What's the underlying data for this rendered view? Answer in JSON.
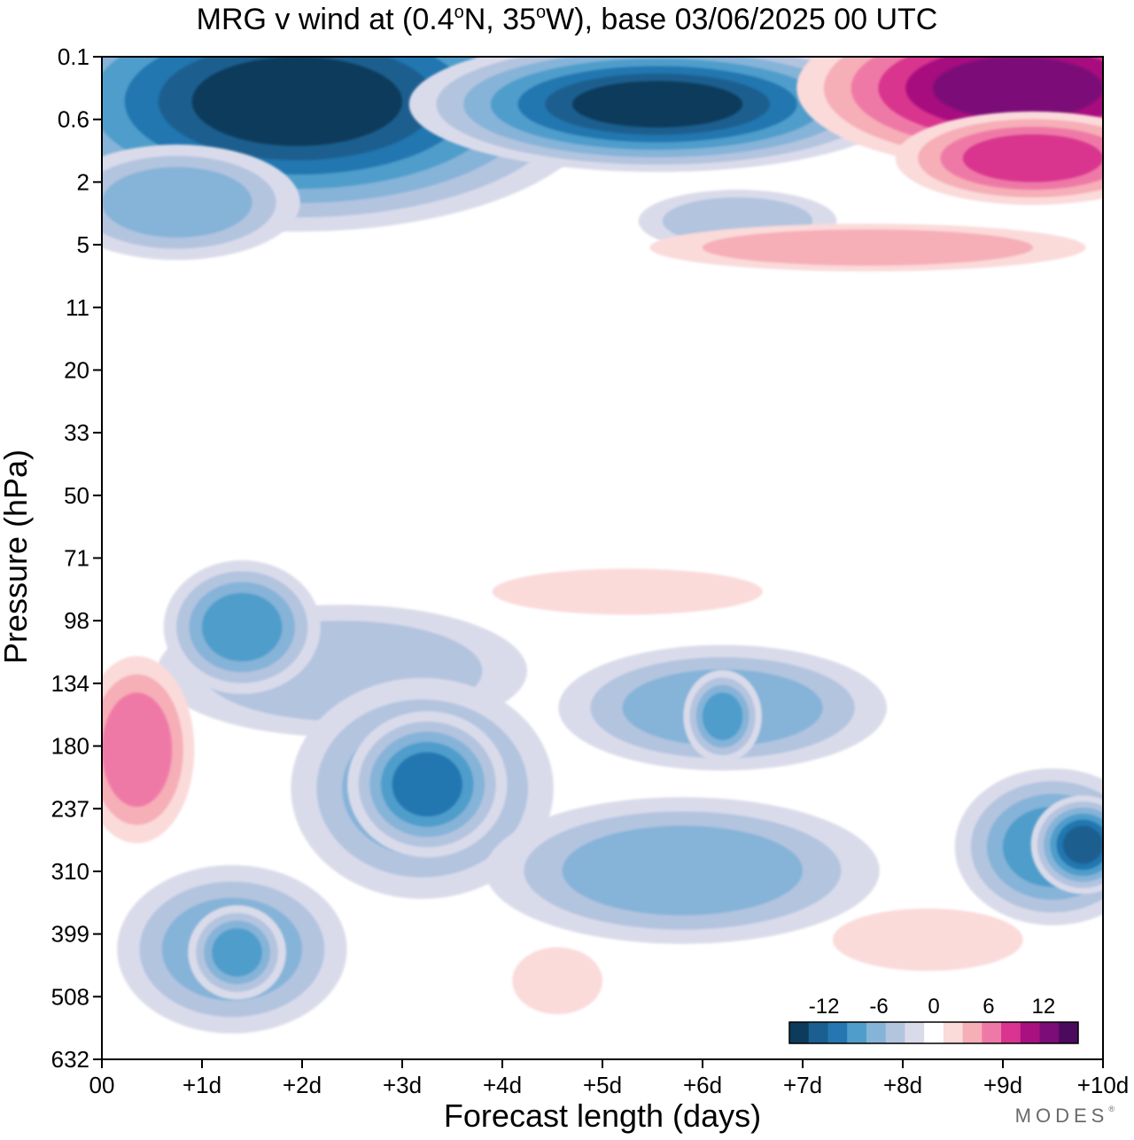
{
  "title": {
    "prefix": "MRG v wind at (0.4",
    "deg1": "o",
    "mid": "N, 35",
    "deg2": "o",
    "suffix": "W),  base 03/06/2025  00 UTC"
  },
  "brand": "MODES",
  "brand_mark": "®",
  "chart_data": {
    "type": "heatmap",
    "title": "MRG v wind at (0.4°N, 35°W),  base 03/06/2025  00 UTC",
    "xlabel": "Forecast length (days)",
    "ylabel": "Pressure (hPa)",
    "x_ticks": [
      "00",
      "+1d",
      "+2d",
      "+3d",
      "+4d",
      "+5d",
      "+6d",
      "+7d",
      "+8d",
      "+9d",
      "+10d"
    ],
    "xlim": [
      0,
      10
    ],
    "y_ticks": [
      "0.1",
      "0.6",
      "2",
      "5",
      "11",
      "20",
      "33",
      "50",
      "71",
      "98",
      "134",
      "180",
      "237",
      "310",
      "399",
      "508",
      "632"
    ],
    "y_scale": "log",
    "colorbar": {
      "tick_labels": [
        "-12",
        "-6",
        "0",
        "6",
        "12"
      ],
      "colors": [
        "#0d3b5c",
        "#1a5f8f",
        "#2477b0",
        "#4f9dcb",
        "#86b3d8",
        "#b3c4df",
        "#dadbea",
        "#ffffff",
        "#fbdada",
        "#f6aeb7",
        "#ef79a6",
        "#d9348f",
        "#a8117f",
        "#7b0c78",
        "#4b0a5e"
      ],
      "placement": "bottom-right"
    },
    "features": [
      {
        "kind": "negative",
        "level": 2,
        "x_days": [
          1.0,
          3.8
        ],
        "p_hPa": [
          98,
          160
        ]
      },
      {
        "kind": "negative",
        "level": 4,
        "x_days": [
          1.0,
          1.8
        ],
        "p_hPa": [
          85,
          120
        ]
      },
      {
        "kind": "negative",
        "level": 3,
        "x_days": [
          2.4,
          4.0
        ],
        "p_hPa": [
          160,
          290
        ]
      },
      {
        "kind": "negative",
        "level": 5,
        "x_days": [
          2.9,
          3.6
        ],
        "p_hPa": [
          185,
          245
        ]
      },
      {
        "kind": "negative",
        "level": 3,
        "x_days": [
          5.2,
          7.2
        ],
        "p_hPa": [
          125,
          180
        ]
      },
      {
        "kind": "negative",
        "level": 4,
        "x_days": [
          6.0,
          6.4
        ],
        "p_hPa": [
          140,
          175
        ]
      },
      {
        "kind": "negative",
        "level": 3,
        "x_days": [
          4.6,
          7.0
        ],
        "p_hPa": [
          255,
          370
        ]
      },
      {
        "kind": "negative",
        "level": 4,
        "x_days": [
          9.0,
          10.0
        ],
        "p_hPa": [
          235,
          330
        ]
      },
      {
        "kind": "negative",
        "level": 6,
        "x_days": [
          9.6,
          10.0
        ],
        "p_hPa": [
          255,
          300
        ]
      },
      {
        "kind": "negative",
        "level": 3,
        "x_days": [
          0.6,
          2.0
        ],
        "p_hPa": [
          345,
          515
        ]
      },
      {
        "kind": "negative",
        "level": 4,
        "x_days": [
          1.1,
          1.6
        ],
        "p_hPa": [
          390,
          470
        ]
      },
      {
        "kind": "positive",
        "level": 3,
        "x_days": [
          0.0,
          0.7
        ],
        "p_hPa": [
          140,
          235
        ]
      },
      {
        "kind": "positive",
        "level": 1,
        "x_days": [
          3.9,
          6.6
        ],
        "p_hPa": [
          75,
          95
        ]
      },
      {
        "kind": "positive",
        "level": 1,
        "x_days": [
          7.3,
          9.2
        ],
        "p_hPa": [
          360,
          460
        ]
      },
      {
        "kind": "positive",
        "level": 1,
        "x_days": [
          4.1,
          5.0
        ],
        "p_hPa": [
          420,
          540
        ]
      },
      {
        "kind": "negative",
        "level": 7,
        "x_days": [
          0.9,
          3.0
        ],
        "p_hPa": [
          0.1,
          1.0
        ]
      },
      {
        "kind": "negative",
        "level": 7,
        "x_days": [
          4.7,
          6.4
        ],
        "p_hPa": [
          0.2,
          0.7
        ]
      },
      {
        "kind": "positive",
        "level": 6,
        "x_days": [
          8.3,
          10.0
        ],
        "p_hPa": [
          0.1,
          0.6
        ]
      },
      {
        "kind": "positive",
        "level": 4,
        "x_days": [
          8.6,
          10.0
        ],
        "p_hPa": [
          0.8,
          2.0
        ]
      },
      {
        "kind": "negative",
        "level": 3,
        "x_days": [
          0.0,
          1.5
        ],
        "p_hPa": [
          1.5,
          4.5
        ]
      },
      {
        "kind": "negative",
        "level": 2,
        "x_days": [
          5.6,
          7.1
        ],
        "p_hPa": [
          2.5,
          5.0
        ]
      },
      {
        "kind": "positive",
        "level": 2,
        "x_days": [
          6.0,
          9.3
        ],
        "p_hPa": [
          4.0,
          6.5
        ]
      }
    ]
  },
  "labels": {
    "xlabel": "Forecast length (days)",
    "ylabel": "Pressure (hPa)"
  }
}
